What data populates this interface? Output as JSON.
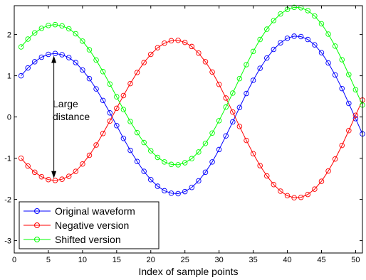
{
  "chart_data": {
    "type": "line",
    "title": "",
    "xlabel": "Index of sample points",
    "ylabel": "",
    "xlim": [
      0,
      51
    ],
    "ylim": [
      -3.3,
      2.7
    ],
    "x_ticks": [
      0,
      5,
      10,
      15,
      20,
      25,
      30,
      35,
      40,
      45,
      50
    ],
    "y_ticks": [
      -3,
      -2,
      -1,
      0,
      1,
      2
    ],
    "grid": false,
    "legend_position": "bottom-left",
    "x": [
      1,
      2,
      3,
      4,
      5,
      6,
      7,
      8,
      9,
      10,
      11,
      12,
      13,
      14,
      15,
      16,
      17,
      18,
      19,
      20,
      21,
      22,
      23,
      24,
      25,
      26,
      27,
      28,
      29,
      30,
      31,
      32,
      33,
      34,
      35,
      36,
      37,
      38,
      39,
      40,
      41,
      42,
      43,
      44,
      45,
      46,
      47,
      48,
      49,
      50,
      51
    ],
    "series": [
      {
        "name": "Original waveform",
        "color": "#0000ff",
        "marker": "circle",
        "values": [
          1.0,
          1.19,
          1.34,
          1.45,
          1.52,
          1.54,
          1.51,
          1.44,
          1.32,
          1.14,
          0.93,
          0.68,
          0.4,
          0.1,
          -0.21,
          -0.52,
          -0.81,
          -1.08,
          -1.32,
          -1.52,
          -1.68,
          -1.79,
          -1.85,
          -1.86,
          -1.81,
          -1.71,
          -1.55,
          -1.34,
          -1.09,
          -0.79,
          -0.46,
          -0.12,
          0.23,
          0.57,
          0.89,
          1.18,
          1.43,
          1.64,
          1.8,
          1.91,
          1.96,
          1.95,
          1.88,
          1.75,
          1.56,
          1.31,
          1.02,
          0.69,
          0.33,
          -0.04,
          -0.41
        ]
      },
      {
        "name": "Negative version",
        "color": "#ff0000",
        "marker": "circle",
        "values": [
          -1.0,
          -1.19,
          -1.34,
          -1.45,
          -1.52,
          -1.54,
          -1.51,
          -1.44,
          -1.32,
          -1.14,
          -0.93,
          -0.68,
          -0.4,
          -0.1,
          0.21,
          0.52,
          0.81,
          1.08,
          1.32,
          1.52,
          1.68,
          1.79,
          1.85,
          1.86,
          1.81,
          1.71,
          1.55,
          1.34,
          1.09,
          0.79,
          0.46,
          0.12,
          -0.23,
          -0.57,
          -0.89,
          -1.18,
          -1.43,
          -1.64,
          -1.8,
          -1.91,
          -1.96,
          -1.95,
          -1.88,
          -1.75,
          -1.56,
          -1.31,
          -1.02,
          -0.69,
          -0.33,
          0.04,
          0.41
        ]
      },
      {
        "name": "Shifted version",
        "color": "#00ff00",
        "marker": "circle",
        "values": [
          1.7,
          1.89,
          2.04,
          2.15,
          2.22,
          2.24,
          2.21,
          2.14,
          2.02,
          1.84,
          1.63,
          1.38,
          1.1,
          0.8,
          0.49,
          0.18,
          -0.11,
          -0.38,
          -0.62,
          -0.82,
          -0.98,
          -1.09,
          -1.15,
          -1.16,
          -1.11,
          -1.01,
          -0.85,
          -0.64,
          -0.39,
          -0.09,
          0.24,
          0.58,
          0.93,
          1.27,
          1.59,
          1.88,
          2.13,
          2.34,
          2.5,
          2.61,
          2.66,
          2.65,
          2.58,
          2.45,
          2.26,
          2.01,
          1.72,
          1.39,
          1.03,
          0.66,
          0.29
        ]
      }
    ],
    "annotation": {
      "text_lines": [
        "Large",
        "distance"
      ],
      "arrow_x": 5.8,
      "arrow_from": 1.52,
      "arrow_to": -1.52
    }
  }
}
